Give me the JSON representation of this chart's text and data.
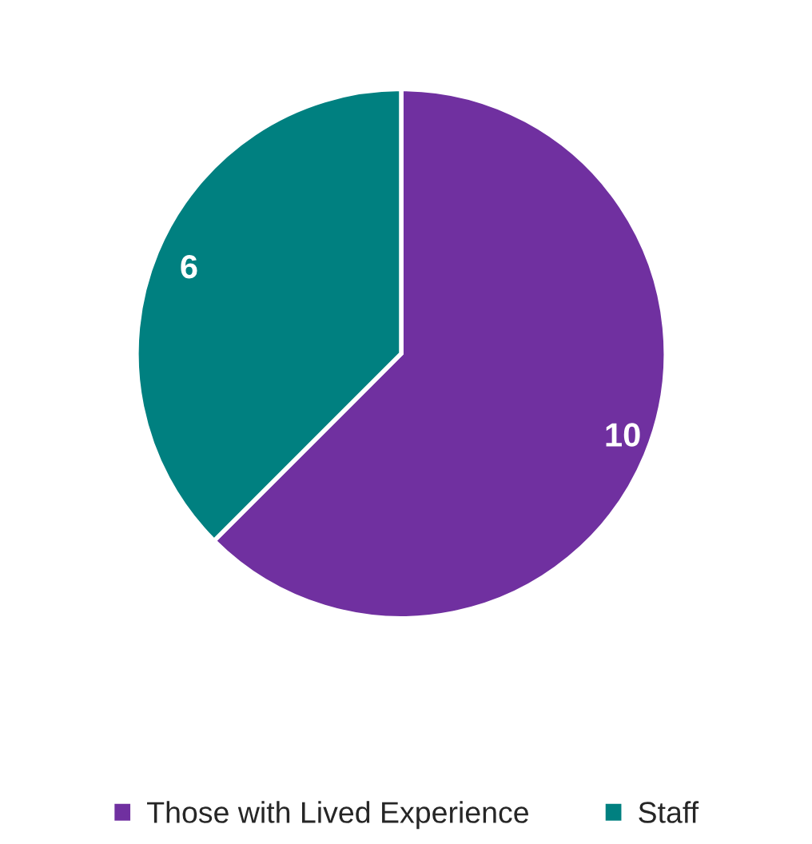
{
  "chart_data": {
    "type": "pie",
    "categories": [
      "Those with Lived Experience",
      "Staff"
    ],
    "values": [
      10,
      6
    ],
    "colors": [
      "#7030a0",
      "#008080"
    ],
    "data_labels": true,
    "legend": "bottom"
  }
}
